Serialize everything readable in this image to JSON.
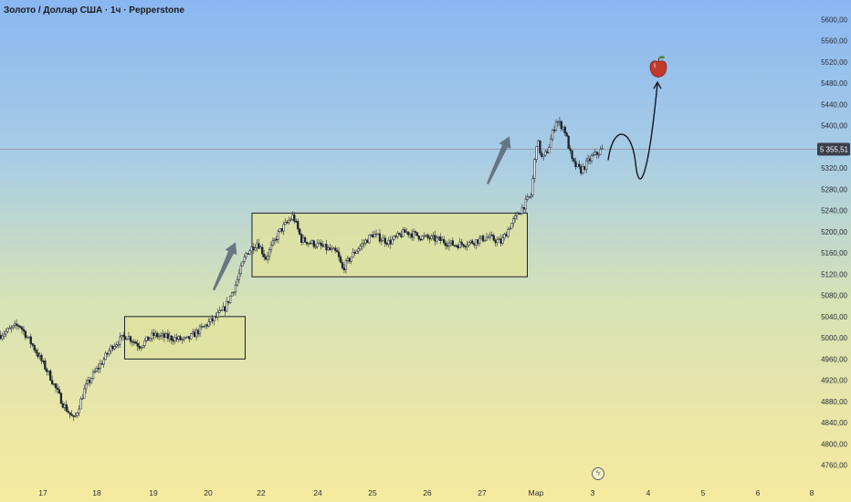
{
  "header": {
    "title": "Золото / Доллар США · 1ч · Pepperstone"
  },
  "current_price_label": "5 355,51",
  "colors": {
    "candle_up": "#1f2530",
    "candle_down": "#1f2530",
    "wick": "#2a2e39",
    "box_fill": "#dfe39f",
    "box_border": "#1e222d",
    "arrow": "#5e6b7a",
    "price_line": "#8a8f99",
    "price_tag": "#3a3f4a",
    "forecast_line": "#131722",
    "apple": "#c0392b"
  },
  "icons": {
    "target": "red-apple-icon",
    "events": "lightning-bolt-icon"
  },
  "chart_data": {
    "type": "candlestick",
    "title": "Золото / Доллар США · 1ч · Pepperstone",
    "ylim": [
      4740,
      5620
    ],
    "x_labels": [
      "17",
      "18",
      "19",
      "20",
      "22",
      "24",
      "25",
      "26",
      "27",
      "Мар",
      "3",
      "4",
      "5",
      "6",
      "8"
    ],
    "y_ticks": [
      "5600,00",
      "5560,00",
      "5520,00",
      "5480,00",
      "5440,00",
      "5400,00",
      "5360,00",
      "5320,00",
      "5280,00",
      "5240,00",
      "5200,00",
      "5160,00",
      "5120,00",
      "5080,00",
      "5040,00",
      "5000,00",
      "4960,00",
      "4920,00",
      "4880,00",
      "4840,00",
      "4800,00",
      "4760,00"
    ],
    "current_price": 5355.51,
    "path": [
      [
        0,
        5005
      ],
      [
        0.7,
        5025
      ],
      [
        1.2,
        4985
      ],
      [
        1.8,
        4930
      ],
      [
        2.3,
        4875
      ],
      [
        2.7,
        4845
      ],
      [
        3.1,
        4905
      ],
      [
        3.4,
        4930
      ],
      [
        3.8,
        4960
      ],
      [
        4.1,
        4985
      ],
      [
        4.6,
        5005
      ],
      [
        5.1,
        4985
      ],
      [
        5.6,
        5005
      ],
      [
        6.2,
        5000
      ],
      [
        6.8,
        4995
      ],
      [
        7.3,
        5015
      ],
      [
        7.8,
        5035
      ],
      [
        8.2,
        5055
      ],
      [
        8.6,
        5100
      ],
      [
        9.0,
        5160
      ],
      [
        9.4,
        5180
      ],
      [
        9.7,
        5150
      ],
      [
        10.2,
        5200
      ],
      [
        10.7,
        5230
      ],
      [
        11.0,
        5185
      ],
      [
        11.6,
        5175
      ],
      [
        12.3,
        5160
      ],
      [
        12.5,
        5130
      ],
      [
        13.0,
        5165
      ],
      [
        13.6,
        5195
      ],
      [
        14.2,
        5180
      ],
      [
        14.8,
        5200
      ],
      [
        15.4,
        5190
      ],
      [
        16.0,
        5185
      ],
      [
        16.6,
        5175
      ],
      [
        17.2,
        5180
      ],
      [
        17.8,
        5190
      ],
      [
        18.3,
        5180
      ],
      [
        18.6,
        5210
      ],
      [
        19.0,
        5240
      ],
      [
        19.4,
        5270
      ],
      [
        19.6,
        5375
      ],
      [
        19.8,
        5335
      ],
      [
        20.0,
        5355
      ],
      [
        20.3,
        5410
      ],
      [
        20.6,
        5395
      ],
      [
        20.9,
        5330
      ],
      [
        21.2,
        5315
      ],
      [
        21.6,
        5340
      ],
      [
        22.0,
        5355
      ]
    ],
    "consolidation_boxes": [
      {
        "x0": 4.55,
        "x1": 8.95,
        "y0": 4960,
        "y1": 5040
      },
      {
        "x0": 9.2,
        "x1": 19.25,
        "y0": 5115,
        "y1": 5235
      }
    ],
    "trend_arrows": [
      {
        "x0": 7.8,
        "y0": 5090,
        "x1": 8.6,
        "y1": 5180
      },
      {
        "x0": 17.8,
        "y0": 5290,
        "x1": 18.6,
        "y1": 5380
      }
    ],
    "forecast_path": [
      [
        22.2,
        5335
      ],
      [
        22.8,
        5375
      ],
      [
        23.4,
        5330
      ],
      [
        23.8,
        5370
      ],
      [
        24.0,
        5480
      ]
    ],
    "target_price": 5510
  }
}
